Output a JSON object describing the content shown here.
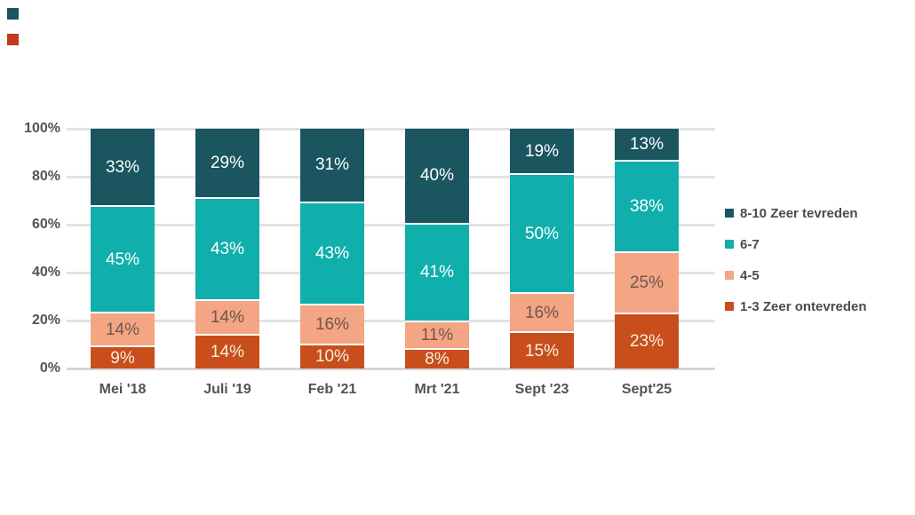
{
  "chart_data": {
    "type": "bar",
    "variant": "stacked-column-100",
    "title": "",
    "xlabel": "",
    "ylabel": "",
    "categories": [
      "Mei '18",
      "Juli '19",
      "Feb '21",
      "Mrt '21",
      "Sept '23",
      "Sept'25"
    ],
    "series": [
      {
        "name": "8-10 Zeer tevreden",
        "color": "#1A5560",
        "label_color": "#FFFFFF",
        "values": [
          33,
          29,
          31,
          40,
          19,
          13
        ]
      },
      {
        "name": "6-7",
        "color": "#10AFAC",
        "label_color": "#FFFFFF",
        "values": [
          45,
          43,
          43,
          41,
          50,
          38
        ]
      },
      {
        "name": "4-5",
        "color": "#F4A584",
        "label_color": "#6B584E",
        "values": [
          14,
          14,
          16,
          11,
          16,
          25
        ]
      },
      {
        "name": "1-3 Zeer ontevreden",
        "color": "#C84E1B",
        "label_color": "#F8EEDE",
        "values": [
          9,
          14,
          10,
          8,
          15,
          23
        ]
      }
    ],
    "value_suffix": "%",
    "y_axis": {
      "range": [
        0,
        100
      ],
      "ticks": [
        {
          "v": 100,
          "label": "100%"
        },
        {
          "v": 80,
          "label": "80%"
        },
        {
          "v": 60,
          "label": "60%"
        },
        {
          "v": 40,
          "label": "40%"
        },
        {
          "v": 20,
          "label": "20%"
        },
        {
          "v": 0,
          "label": "0%"
        }
      ]
    },
    "grid": true,
    "legend_position": "right"
  },
  "decorations": {
    "stray_swatches": [
      {
        "name": "stray-swatch-dark-teal",
        "color": "#1A5560"
      },
      {
        "name": "stray-swatch-red",
        "color": "#C13A1A"
      }
    ]
  },
  "colors": {
    "grid": "#E2E2E2",
    "baseline": "#D5D5D5",
    "axis_text": "#525357",
    "legend_text": "#4A4B4D",
    "background": "#FFFFFF"
  }
}
